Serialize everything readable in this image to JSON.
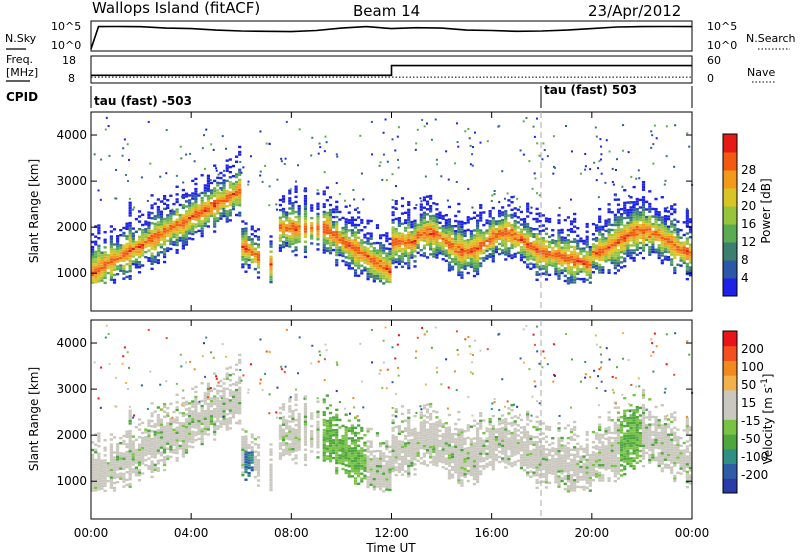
{
  "header": {
    "station": "Wallops Island (fitACF)",
    "beam": "Beam 14",
    "date": "23/Apr/2012"
  },
  "strip_labels": {
    "nsky": "N.Sky",
    "nsky_tick_top": "10^5",
    "nsky_tick_bottom": "10^0",
    "nsearch": "N.Search",
    "nsearch_tick_top": "10^5",
    "nsearch_tick_bottom": "10^0",
    "freq": "Freq.",
    "freq_unit": "[MHz]",
    "freq_tick_top": "18",
    "freq_tick_bottom": "8",
    "nave": "Nave",
    "nave_tick_top": "60",
    "nave_tick_bottom": "0",
    "cpid": "CPID",
    "cpid_left": "tau (fast) -503",
    "cpid_right": "tau (fast) 503"
  },
  "colors": {
    "power": [
      "#1e22e6",
      "#2a57a8",
      "#3c7f6e",
      "#5aab52",
      "#97c43c",
      "#d8c424",
      "#f39a1c",
      "#f25a12",
      "#e61a14"
    ],
    "velocity": [
      "#e8141a",
      "#f2501e",
      "#f08a1e",
      "#f3b14a",
      "#c9c7be",
      "#c9c7be",
      "#79c343",
      "#4ea63e",
      "#2e8f82",
      "#2f5ca6",
      "#2a3aa8"
    ]
  },
  "chart_data": [
    {
      "type": "line",
      "title": "N.Sky / N.Search",
      "x_range": [
        "00:00",
        "24:00"
      ],
      "series": [
        {
          "name": "N.Sky",
          "x": [
            0,
            0.3,
            1,
            2,
            3,
            4,
            5,
            6,
            7,
            8,
            9,
            10,
            11,
            12,
            13,
            14,
            15,
            16,
            17,
            18,
            19,
            20,
            21,
            22,
            23,
            24
          ],
          "values": [
            1,
            30000,
            31000,
            29000,
            15000,
            12000,
            6000,
            4000,
            3500,
            3000,
            5000,
            15000,
            30000,
            12000,
            18000,
            15000,
            6000,
            5000,
            3500,
            4000,
            6000,
            12000,
            25000,
            30000,
            32000,
            30000
          ]
        }
      ]
    },
    {
      "type": "line",
      "title": "Freq. [MHz] / Nave",
      "x_range": [
        "00:00",
        "24:00"
      ],
      "freq_ylim": [
        8,
        18
      ],
      "nave_ylim": [
        0,
        60
      ],
      "series": [
        {
          "name": "Freq.",
          "x": [
            0,
            12,
            12,
            24
          ],
          "values": [
            10.5,
            10.5,
            14.7,
            14.7
          ]
        },
        {
          "name": "Nave",
          "x": [
            0,
            24
          ],
          "values": [
            10,
            10
          ]
        }
      ]
    },
    {
      "type": "heatmap",
      "ylabel": "Slant Range [km]",
      "colorbar_label": "Power [dB]",
      "colorbar_ticks": [
        "4",
        "8",
        "12",
        "16",
        "20",
        "24",
        "28"
      ],
      "x_ticks": [
        "00:00",
        "04:00",
        "08:00",
        "12:00",
        "16:00",
        "20:00",
        "00:00"
      ],
      "y_ticks": [
        "1000",
        "2000",
        "3000",
        "4000"
      ],
      "ylim": [
        180,
        4500
      ]
    },
    {
      "type": "heatmap",
      "ylabel": "Slant Range [km]",
      "xlabel": "Time UT",
      "colorbar_label": "Velocity [m s^-1]",
      "colorbar_ticks": [
        "200",
        "100",
        "50",
        "15",
        "-15",
        "-50",
        "-100",
        "-200"
      ],
      "x_ticks": [
        "00:00",
        "04:00",
        "08:00",
        "12:00",
        "16:00",
        "20:00",
        "00:00"
      ],
      "y_ticks": [
        "1000",
        "2000",
        "3000",
        "4000"
      ],
      "ylim": [
        180,
        4500
      ]
    }
  ]
}
